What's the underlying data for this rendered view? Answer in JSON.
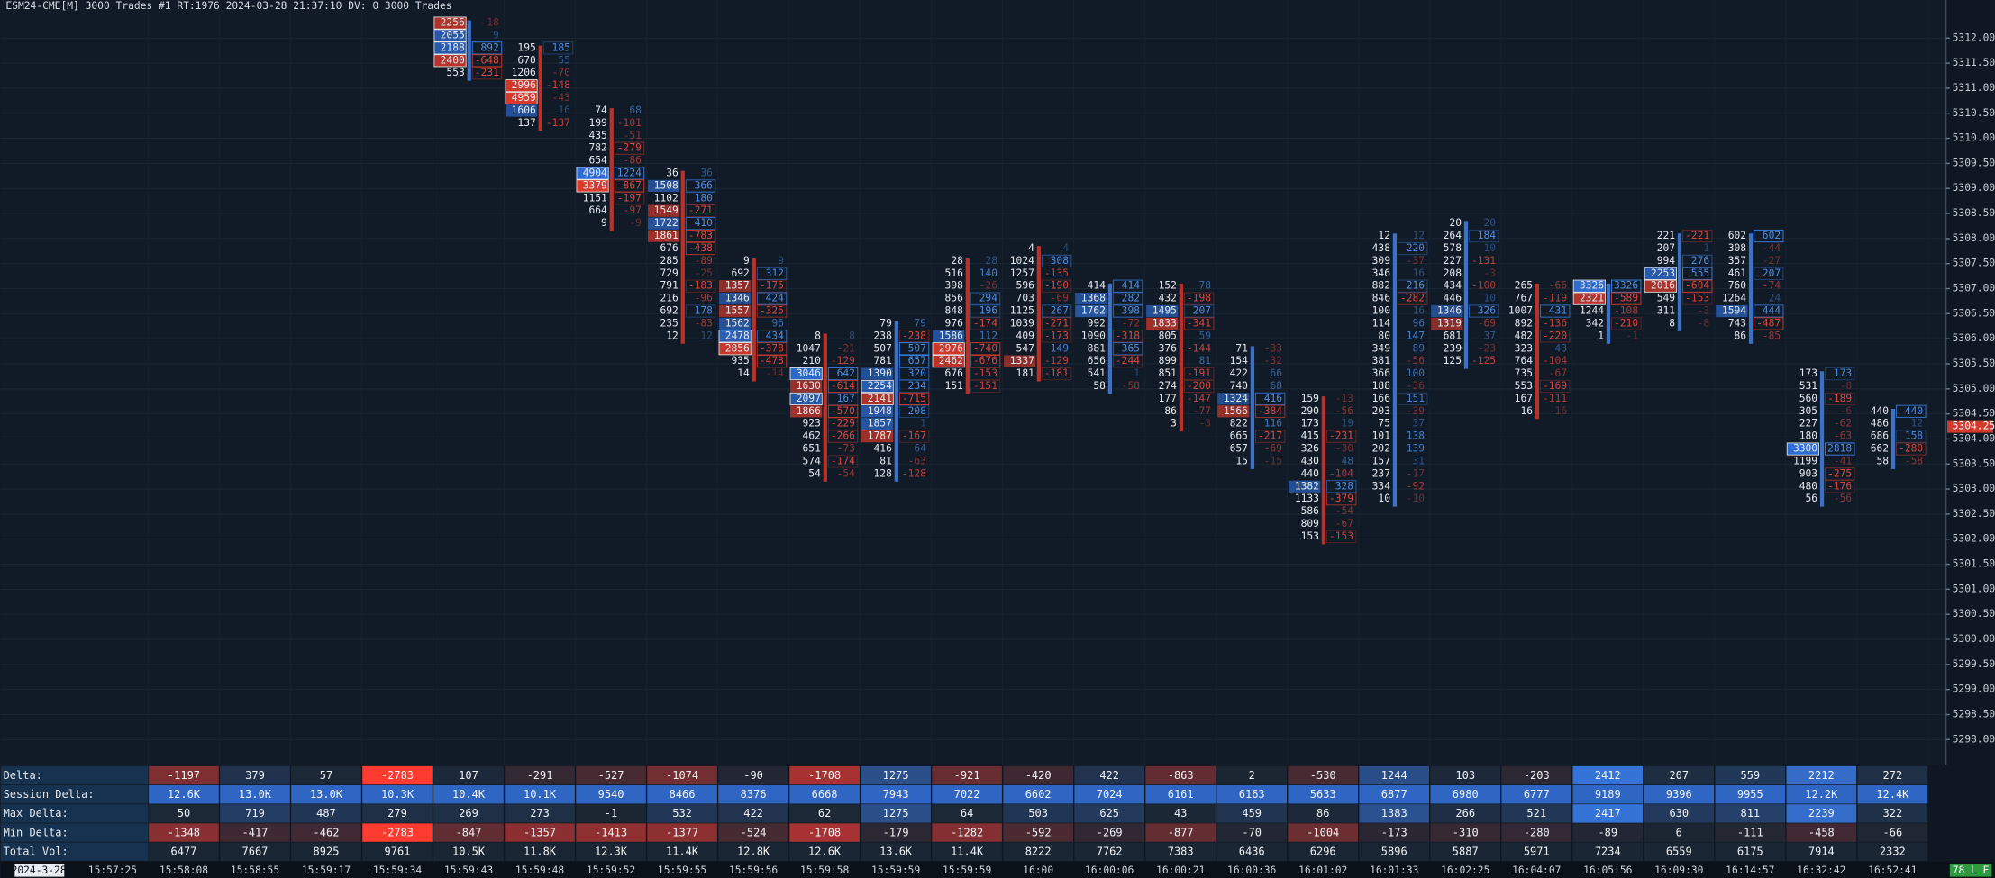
{
  "header": "ESM24-CME[M]  3000 Trades #1 RT:1976 2024-03-28 21:37:10 DV: 0 3000 Trades",
  "chart_data": {
    "type": "footprint",
    "ylim": [
      5297.5,
      5312.75
    ],
    "yticks": [
      {
        "value": 5312,
        "label": "5312.00"
      },
      {
        "value": 5311.5,
        "label": "5311.50"
      },
      {
        "value": 5311,
        "label": "5311.00"
      },
      {
        "value": 5310.5,
        "label": "5310.50"
      },
      {
        "value": 5310,
        "label": "5310.00"
      },
      {
        "value": 5309.5,
        "label": "5309.50"
      },
      {
        "value": 5309,
        "label": "5309.00"
      },
      {
        "value": 5308.5,
        "label": "5308.50"
      },
      {
        "value": 5308,
        "label": "5308.00"
      },
      {
        "value": 5307.5,
        "label": "5307.50"
      },
      {
        "value": 5307,
        "label": "5307.00"
      },
      {
        "value": 5306.5,
        "label": "5306.50"
      },
      {
        "value": 5306,
        "label": "5306.00"
      },
      {
        "value": 5305.5,
        "label": "5305.50"
      },
      {
        "value": 5305,
        "label": "5305.00"
      },
      {
        "value": 5304.5,
        "label": "5304.50"
      },
      {
        "value": 5304,
        "label": "5304.00"
      },
      {
        "value": 5303.5,
        "label": "5303.50"
      },
      {
        "value": 5303,
        "label": "5303.00"
      },
      {
        "value": 5302.5,
        "label": "5302.50"
      },
      {
        "value": 5302,
        "label": "5302.00"
      },
      {
        "value": 5301.5,
        "label": "5301.50"
      },
      {
        "value": 5301,
        "label": "5301.00"
      },
      {
        "value": 5300.5,
        "label": "5300.50"
      },
      {
        "value": 5300,
        "label": "5300.00"
      },
      {
        "value": 5299.5,
        "label": "5299.50"
      },
      {
        "value": 5299,
        "label": "5299.00"
      },
      {
        "value": 5298.5,
        "label": "5298.50"
      },
      {
        "value": 5298,
        "label": "5298.00"
      }
    ],
    "last_price": {
      "value": 5304.25,
      "label": "5304.25"
    },
    "columns": [
      {
        "top": 5312.25,
        "rows": [
          [
            2256,
            -18
          ],
          [
            2055,
            9
          ],
          [
            2188,
            892
          ],
          [
            2400,
            -648
          ],
          [
            553,
            -231
          ]
        ]
      },
      {
        "top": 5311.75,
        "rows": [
          [
            195,
            185
          ],
          [
            670,
            55
          ],
          [
            1206,
            -70
          ],
          [
            2996,
            -148
          ],
          [
            4959,
            -43
          ],
          [
            1606,
            16
          ],
          [
            137,
            -137
          ]
        ]
      },
      {
        "top": 5310.5,
        "rows": [
          [
            74,
            68
          ],
          [
            199,
            -101
          ],
          [
            435,
            -51
          ],
          [
            782,
            -279
          ],
          [
            654,
            -86
          ],
          [
            4904,
            1224
          ],
          [
            3379,
            -867
          ],
          [
            1151,
            -197
          ],
          [
            664,
            -97
          ],
          [
            9,
            -9
          ]
        ]
      },
      {
        "top": 5309.25,
        "rows": [
          [
            36,
            36
          ],
          [
            1508,
            366
          ],
          [
            1102,
            180
          ],
          [
            1549,
            -271
          ],
          [
            1722,
            410
          ],
          [
            1861,
            -783
          ],
          [
            676,
            -438
          ],
          [
            285,
            -89
          ],
          [
            729,
            -25
          ],
          [
            791,
            -183
          ],
          [
            216,
            -96
          ],
          [
            692,
            178
          ],
          [
            235,
            -83
          ],
          [
            12,
            12
          ]
        ]
      },
      {
        "top": 5307.5,
        "rows": [
          [
            9,
            9
          ],
          [
            692,
            312
          ],
          [
            1357,
            -175
          ],
          [
            1346,
            424
          ],
          [
            1557,
            -325
          ],
          [
            1562,
            96
          ],
          [
            2478,
            434
          ],
          [
            2856,
            -378
          ],
          [
            935,
            -473
          ],
          [
            14,
            -14
          ]
        ]
      },
      {
        "top": 5306,
        "rows": [
          [
            8,
            8
          ],
          [
            1047,
            -21
          ],
          [
            210,
            -129
          ],
          [
            3046,
            642
          ],
          [
            1630,
            -614
          ],
          [
            2097,
            167
          ],
          [
            1866,
            -570
          ],
          [
            923,
            -229
          ],
          [
            462,
            -266
          ],
          [
            651,
            -73
          ],
          [
            574,
            -174
          ],
          [
            54,
            -54
          ]
        ]
      },
      {
        "top": 5306.25,
        "rows": [
          [
            79,
            79
          ],
          [
            238,
            -238
          ],
          [
            507,
            507
          ],
          [
            781,
            657
          ],
          [
            1390,
            320
          ],
          [
            2254,
            234
          ],
          [
            2141,
            -715
          ],
          [
            1948,
            208
          ],
          [
            1857,
            1
          ],
          [
            1787,
            -167
          ],
          [
            416,
            64
          ],
          [
            81,
            -63
          ],
          [
            128,
            -128
          ]
        ]
      },
      {
        "top": 5307.5,
        "rows": [
          [
            28,
            28
          ],
          [
            516,
            140
          ],
          [
            398,
            -26
          ],
          [
            856,
            294
          ],
          [
            848,
            196
          ],
          [
            976,
            -174
          ],
          [
            1586,
            112
          ],
          [
            2976,
            -740
          ],
          [
            2462,
            -676
          ],
          [
            676,
            -153
          ],
          [
            151,
            -151
          ]
        ]
      },
      {
        "top": 5307.75,
        "rows": [
          [
            4,
            4
          ],
          [
            1024,
            308
          ],
          [
            1257,
            -135
          ],
          [
            596,
            -190
          ],
          [
            703,
            -69
          ],
          [
            1125,
            267
          ],
          [
            1039,
            -271
          ],
          [
            409,
            -173
          ],
          [
            547,
            149
          ],
          [
            1337,
            -129
          ],
          [
            181,
            -181
          ]
        ]
      },
      {
        "top": 5307,
        "rows": [
          [
            414,
            414
          ],
          [
            1368,
            282
          ],
          [
            1762,
            398
          ],
          [
            992,
            -72
          ],
          [
            1090,
            -318
          ],
          [
            881,
            365
          ],
          [
            656,
            -244
          ],
          [
            541,
            1
          ],
          [
            58,
            -58
          ]
        ]
      },
      {
        "top": 5307,
        "rows": [
          [
            152,
            78
          ],
          [
            432,
            -198
          ],
          [
            1495,
            207
          ],
          [
            1833,
            -341
          ],
          [
            805,
            59
          ],
          [
            376,
            -144
          ],
          [
            899,
            81
          ],
          [
            851,
            -191
          ],
          [
            274,
            -200
          ],
          [
            177,
            -147
          ],
          [
            86,
            -77
          ],
          [
            3,
            -3
          ]
        ]
      },
      {
        "top": 5305.75,
        "rows": [
          [
            71,
            -33
          ],
          [
            154,
            -32
          ],
          [
            422,
            66
          ],
          [
            740,
            68
          ],
          [
            1324,
            416
          ],
          [
            1566,
            -384
          ],
          [
            822,
            116
          ],
          [
            665,
            -217
          ],
          [
            657,
            -69
          ],
          [
            15,
            -15
          ]
        ]
      },
      {
        "top": 5304.75,
        "rows": [
          [
            159,
            -13
          ],
          [
            290,
            -56
          ],
          [
            173,
            19
          ],
          [
            415,
            -231
          ],
          [
            326,
            -30
          ],
          [
            430,
            48
          ],
          [
            440,
            -104
          ],
          [
            1382,
            328
          ],
          [
            1133,
            -379
          ],
          [
            586,
            -54
          ],
          [
            809,
            -67
          ],
          [
            153,
            -153
          ]
        ]
      },
      {
        "top": 5308,
        "rows": [
          [
            12,
            12
          ],
          [
            438,
            220
          ],
          [
            309,
            -37
          ],
          [
            346,
            16
          ],
          [
            882,
            216
          ],
          [
            846,
            -282
          ],
          [
            100,
            16
          ],
          [
            114,
            96
          ],
          [
            80,
            147
          ],
          [
            349,
            89
          ],
          [
            381,
            -56
          ],
          [
            366,
            100
          ],
          [
            188,
            -36
          ],
          [
            166,
            151
          ],
          [
            203,
            -39
          ],
          [
            75,
            37
          ],
          [
            101,
            138
          ],
          [
            202,
            139
          ],
          [
            157,
            31
          ],
          [
            237,
            -17
          ],
          [
            334,
            -92
          ],
          [
            10,
            -10
          ]
        ]
      },
      {
        "top": 5308.25,
        "rows": [
          [
            20,
            20
          ],
          [
            264,
            184
          ],
          [
            578,
            10
          ],
          [
            227,
            -131
          ],
          [
            208,
            -3
          ],
          [
            434,
            -100
          ],
          [
            446,
            10
          ],
          [
            1346,
            326
          ],
          [
            1319,
            -69
          ],
          [
            681,
            37
          ],
          [
            239,
            -23
          ],
          [
            125,
            -125
          ]
        ]
      },
      {
        "top": 5307,
        "rows": [
          [
            265,
            -66
          ],
          [
            767,
            -119
          ],
          [
            1007,
            431
          ],
          [
            892,
            -136
          ],
          [
            482,
            -220
          ],
          [
            323,
            43
          ],
          [
            764,
            -104
          ],
          [
            735,
            -67
          ],
          [
            553,
            -169
          ],
          [
            167,
            -111
          ],
          [
            16,
            -16
          ]
        ]
      },
      {
        "top": 5307,
        "rows": [
          [
            3326,
            3326
          ],
          [
            2321,
            -589
          ],
          [
            1244,
            -108
          ],
          [
            342,
            -210
          ],
          [
            1,
            -1
          ]
        ]
      },
      {
        "top": 5308,
        "rows": [
          [
            221,
            -221
          ],
          [
            207,
            1
          ],
          [
            994,
            276
          ],
          [
            2253,
            555
          ],
          [
            2016,
            -604
          ],
          [
            549,
            -153
          ],
          [
            311,
            -3
          ],
          [
            8,
            -8
          ]
        ]
      },
      {
        "top": 5308,
        "rows": [
          [
            602,
            602
          ],
          [
            308,
            -44
          ],
          [
            357,
            -27
          ],
          [
            461,
            207
          ],
          [
            760,
            -74
          ],
          [
            1264,
            24
          ],
          [
            1594,
            444
          ],
          [
            743,
            -487
          ],
          [
            86,
            -85
          ]
        ]
      },
      {
        "top": 5305.25,
        "rows": [
          [
            173,
            173
          ],
          [
            531,
            -8
          ],
          [
            560,
            -189
          ],
          [
            305,
            -6
          ],
          [
            227,
            -62
          ],
          [
            180,
            -63
          ],
          [
            3300,
            2818
          ],
          [
            1199,
            -41
          ],
          [
            903,
            -275
          ],
          [
            480,
            -176
          ],
          [
            56,
            -56
          ]
        ]
      },
      {
        "top": 5304.5,
        "rows": [
          [
            440,
            440
          ],
          [
            486,
            12
          ],
          [
            686,
            158
          ],
          [
            662,
            -280
          ],
          [
            58,
            -58
          ]
        ]
      }
    ],
    "table": [
      {
        "name": "Delta:",
        "values": [
          -1197,
          379,
          57,
          -2783,
          107,
          -291,
          -527,
          -1074,
          -90,
          -1708,
          1275,
          -921,
          -420,
          422,
          -863,
          2,
          -530,
          1244,
          103,
          -203,
          2412,
          207,
          559,
          2212,
          272
        ]
      },
      {
        "name": "Session Delta:",
        "color": "#2f66c4",
        "values": [
          "12.6K",
          "13.0K",
          "13.0K",
          "10.3K",
          "10.4K",
          "10.1K",
          9540,
          8466,
          8376,
          6668,
          7943,
          7022,
          6602,
          7024,
          6161,
          6163,
          5633,
          6877,
          6980,
          6777,
          9189,
          9396,
          9955,
          "12.2K",
          "12.4K"
        ]
      },
      {
        "name": "Max Delta:",
        "values": [
          50,
          719,
          487,
          279,
          269,
          273,
          -1,
          532,
          422,
          62,
          1275,
          64,
          503,
          625,
          43,
          459,
          86,
          1383,
          266,
          521,
          2417,
          630,
          811,
          2239,
          322
        ]
      },
      {
        "name": "Min Delta:",
        "values": [
          -1348,
          -417,
          -462,
          -2783,
          -847,
          -1357,
          -1413,
          -1377,
          -524,
          -1708,
          -179,
          -1282,
          -592,
          -269,
          -877,
          -70,
          -1004,
          -173,
          -310,
          -280,
          -89,
          6,
          -111,
          -458,
          -66
        ]
      },
      {
        "name": "Total Vol:",
        "color": "#1a2634",
        "values": [
          6477,
          7667,
          8925,
          9761,
          "10.5K",
          "11.8K",
          "12.3K",
          "11.4K",
          "12.8K",
          "12.6K",
          "13.6K",
          "11.4K",
          8222,
          7762,
          7383,
          6436,
          6296,
          5896,
          5887,
          5971,
          7234,
          6559,
          6175,
          7914,
          2332
        ]
      }
    ],
    "time_labels": [
      "2024-3-28",
      "15:57:25",
      "15:58:08",
      "15:58:55",
      "15:59:17",
      "15:59:34",
      "15:59:43",
      "15:59:48",
      "15:59:52",
      "15:59:55",
      "15:59:56",
      "15:59:58",
      "15:59:59",
      "15:59:59",
      "16:00",
      "16:00:06",
      "16:00:21",
      "16:00:36",
      "16:01:02",
      "16:01:33",
      "16:02:25",
      "16:04:07",
      "16:05:56",
      "16:09:30",
      "16:14:57",
      "16:32:42",
      "16:52:41"
    ],
    "badge": "78 L E"
  }
}
